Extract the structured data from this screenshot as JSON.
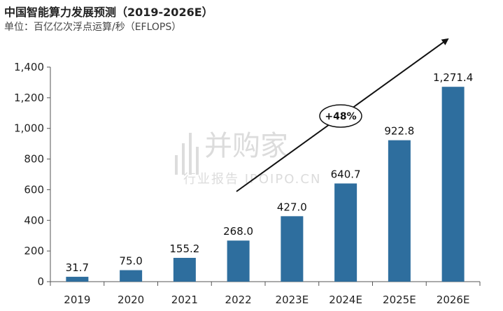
{
  "chart_data": {
    "type": "bar",
    "title": "中国智能算力发展预测（2019-2026E）",
    "subtitle": "单位：百亿亿次浮点运算/秒（EFLOPS）",
    "categories": [
      "2019",
      "2020",
      "2021",
      "2022",
      "2023E",
      "2024E",
      "2025E",
      "2026E"
    ],
    "values": [
      31.7,
      75.0,
      155.2,
      268.0,
      427.0,
      640.7,
      922.8,
      1271.4
    ],
    "value_labels": [
      "31.7",
      "75.0",
      "155.2",
      "268.0",
      "427.0",
      "640.7",
      "922.8",
      "1,271.4"
    ],
    "yticks": [
      "0",
      "200",
      "400",
      "600",
      "800",
      "1,000",
      "1,200",
      "1,400"
    ],
    "ylim": [
      0,
      1400
    ],
    "grid": false,
    "bar_color": "#2e6e9e",
    "annotation": "+48%",
    "watermark": {
      "brand": "并购家",
      "caption": "行业报告 IPOIPO.CN"
    }
  }
}
